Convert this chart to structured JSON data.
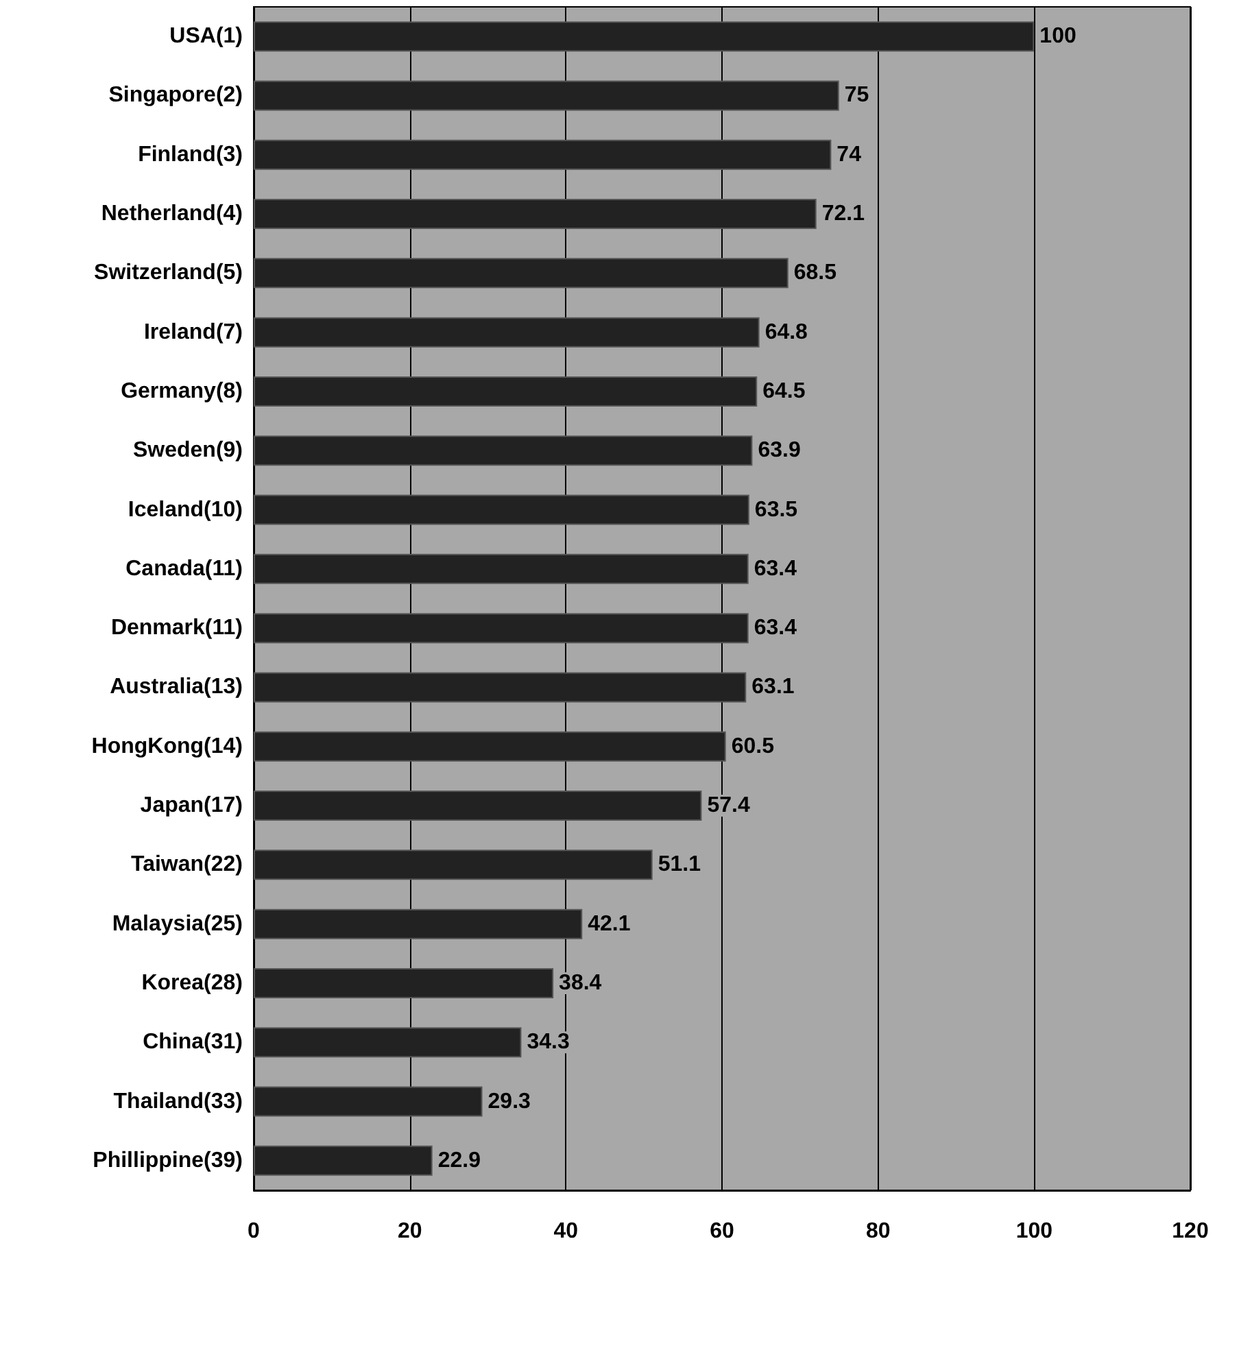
{
  "chart_data": {
    "type": "bar",
    "orientation": "horizontal",
    "categories": [
      "USA(1)",
      "Singapore(2)",
      "Finland(3)",
      "Netherland(4)",
      "Switzerland(5)",
      "Ireland(7)",
      "Germany(8)",
      "Sweden(9)",
      "Iceland(10)",
      "Canada(11)",
      "Denmark(11)",
      "Australia(13)",
      "HongKong(14)",
      "Japan(17)",
      "Taiwan(22)",
      "Malaysia(25)",
      "Korea(28)",
      "China(31)",
      "Thailand(33)",
      "Phillippine(39)"
    ],
    "values": [
      100,
      75,
      74,
      72.1,
      68.5,
      64.8,
      64.5,
      63.9,
      63.5,
      63.4,
      63.4,
      63.1,
      60.5,
      57.4,
      51.1,
      42.1,
      38.4,
      34.3,
      29.3,
      22.9
    ],
    "color": "#222222",
    "xlim": [
      0,
      120
    ],
    "xticks": [
      0,
      20,
      40,
      60,
      80,
      100,
      120
    ],
    "grid": "x",
    "data_labels": true
  }
}
